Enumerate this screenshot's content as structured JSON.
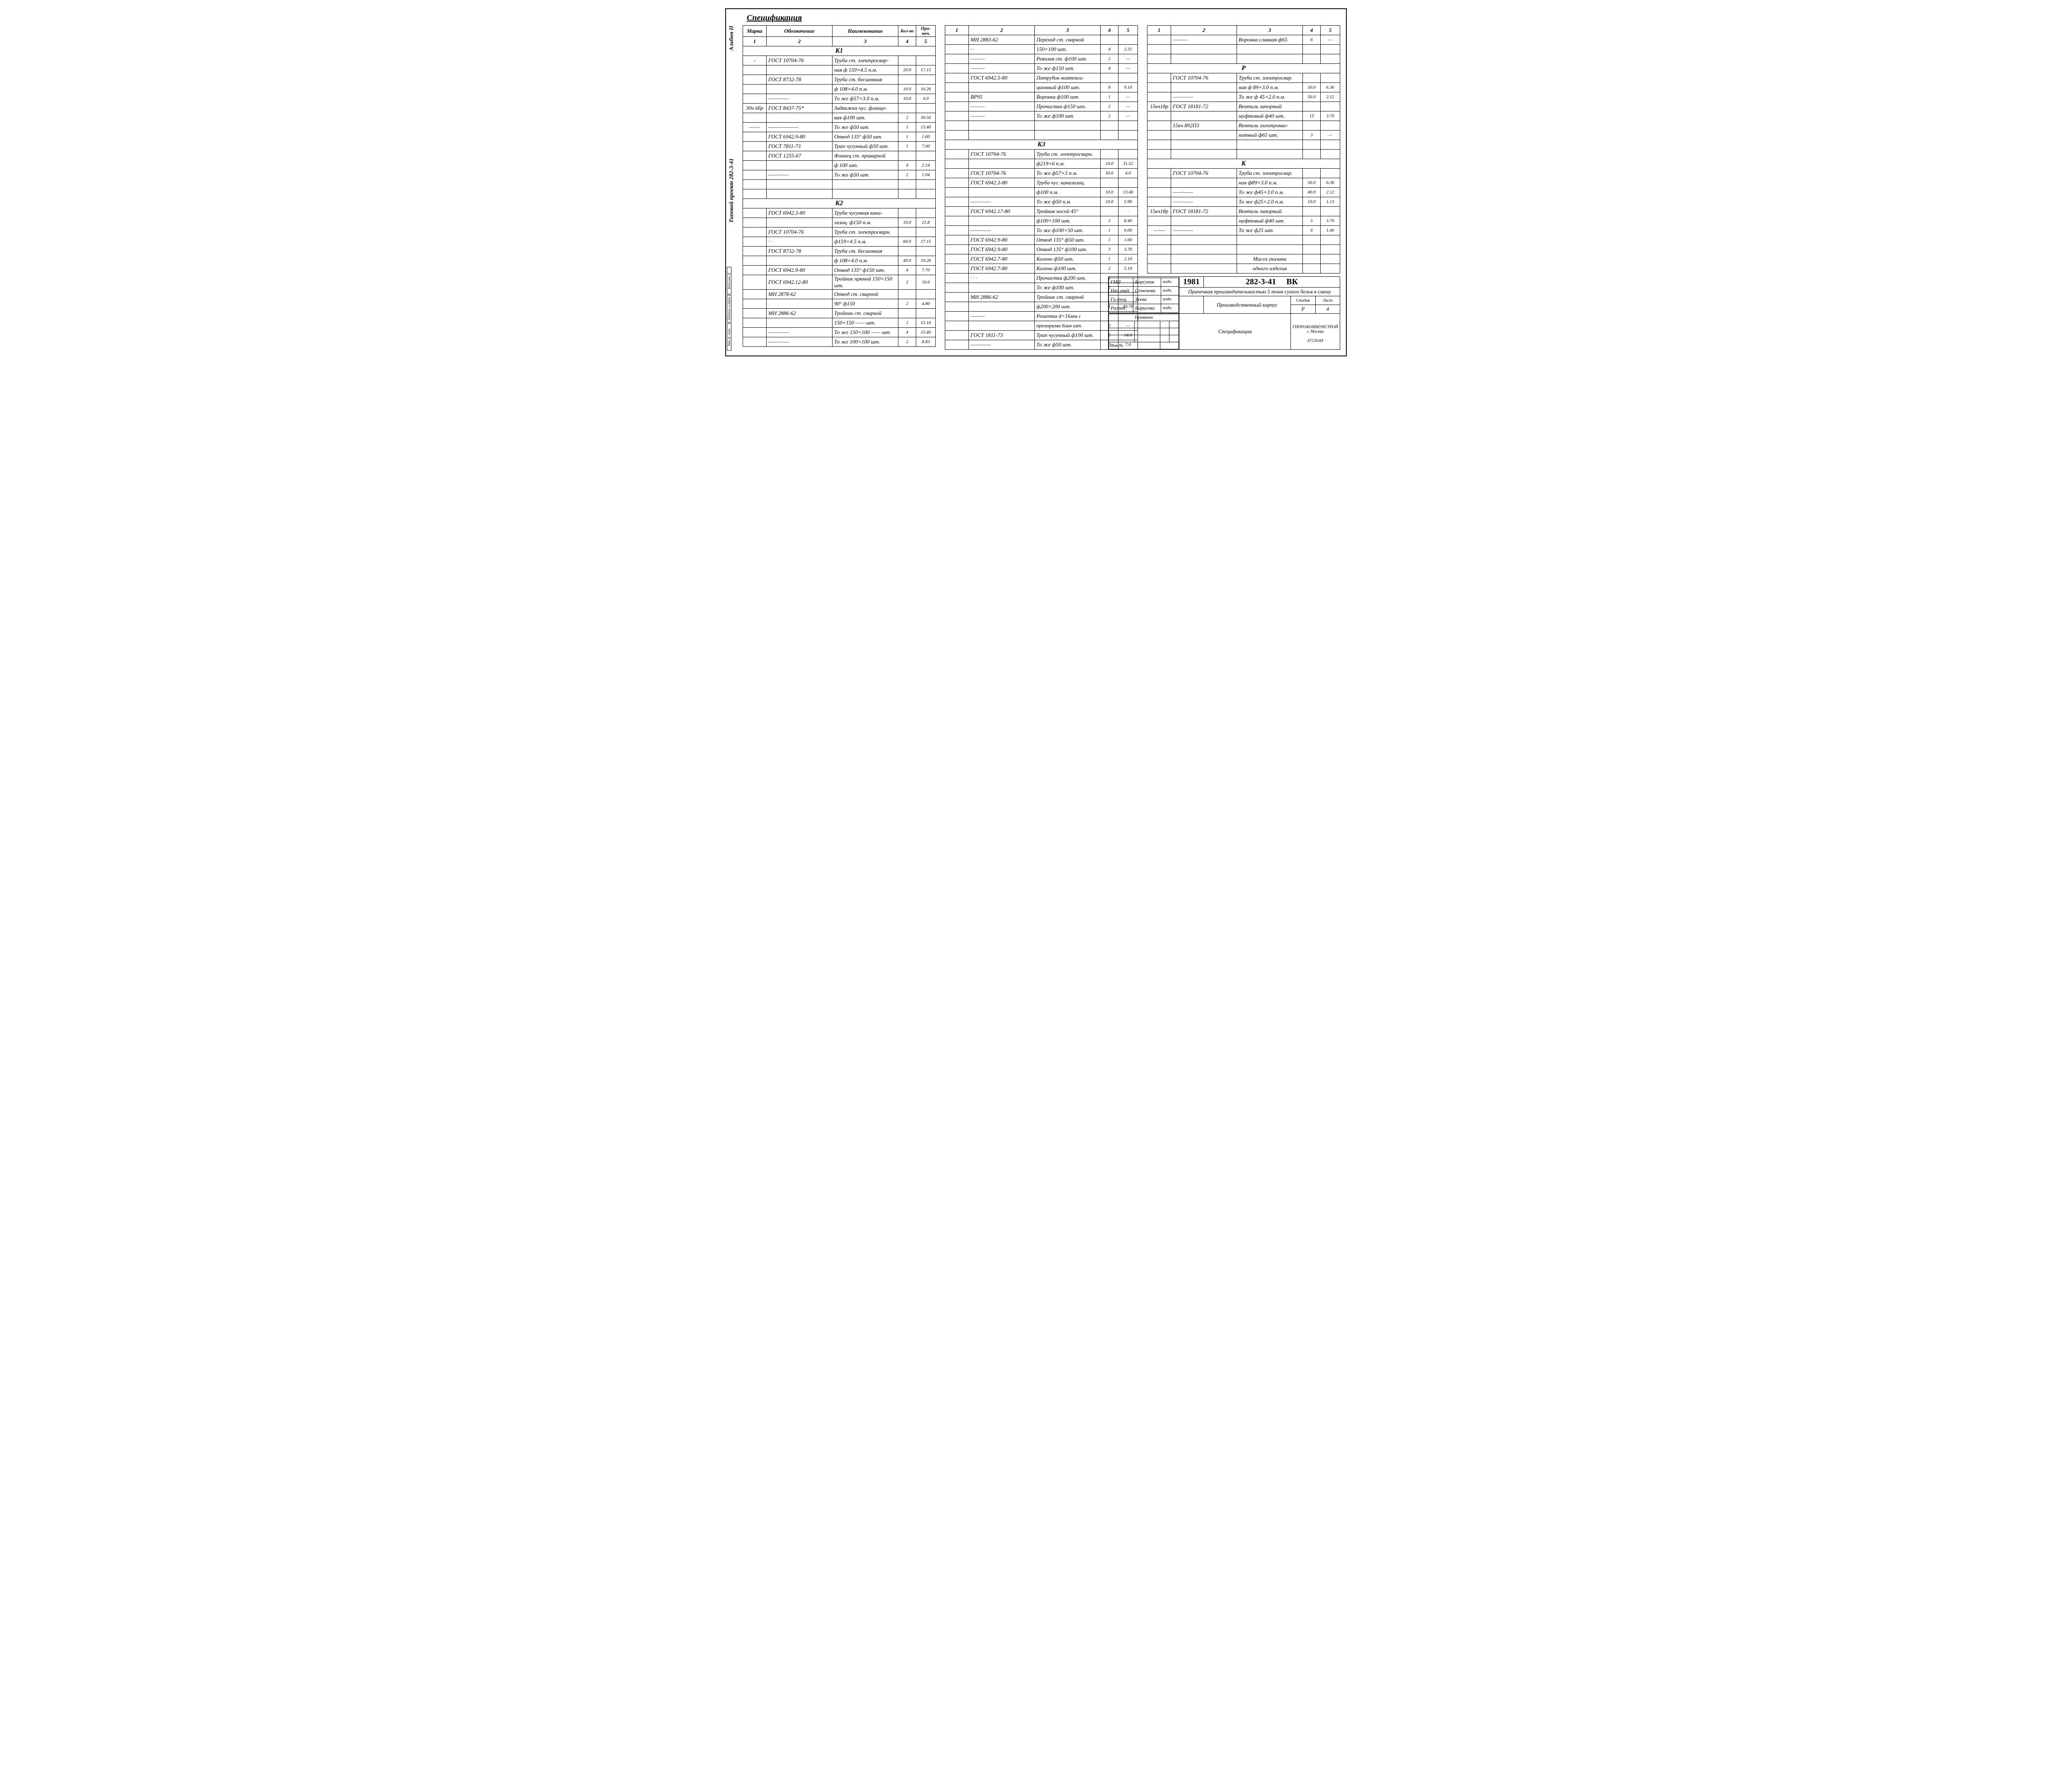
{
  "side_labels": {
    "top": "Альбом II",
    "mid": "Типовой проект 282-3-41"
  },
  "side_boxes": [
    "Взам.инв.№",
    "Подпись и дата",
    "Инв.№ подл."
  ],
  "title": "Спецификация",
  "headers": {
    "marka": "Марка",
    "oboz": "Обозначение",
    "name": "Наименование",
    "kol": "Кол-во",
    "prim": "При-меч."
  },
  "colnums": [
    "1",
    "2",
    "3",
    "4",
    "5"
  ],
  "col1": [
    {
      "type": "section",
      "label": "К1"
    },
    {
      "marka": "-",
      "oboz": "ГОСТ 10704-76",
      "name": "Труба ст. электросвар-",
      "kol": "",
      "prim": ""
    },
    {
      "marka": "",
      "oboz": "",
      "name": "ная ф 159×4.5        п.м.",
      "kol": "20.0",
      "prim": "17.15"
    },
    {
      "marka": "",
      "oboz": "ГОСТ 8732-78",
      "name": "Труба ст. бесшовная",
      "kol": "",
      "prim": ""
    },
    {
      "marka": "",
      "oboz": "",
      "name": "ф 108×4.0            п.м.",
      "kol": "10.0",
      "prim": "10.26"
    },
    {
      "marka": "",
      "oboz": "——·——",
      "name": "То же ф57×3.0        п.м.",
      "kol": "10.0",
      "prim": "4.0"
    },
    {
      "marka": "30ч 6бр",
      "oboz": "ГОСТ 8437-75*",
      "name": "Задвижка чуг. фланце-",
      "kol": "",
      "prim": ""
    },
    {
      "marka": "",
      "oboz": "",
      "name": "вая ф100             шт.",
      "kol": "2",
      "prim": "39.50"
    },
    {
      "marka": "—·—",
      "oboz": "———·———",
      "name": "То же ф50            шт.",
      "kol": "1",
      "prim": "13.40"
    },
    {
      "marka": "",
      "oboz": "ГОСТ 6942.9-80",
      "name": "Отвод 135° ф50       шт.",
      "kol": "1",
      "prim": "1.60"
    },
    {
      "marka": "",
      "oboz": "ГОСТ 7811-73",
      "name": "Трап чугунный ф50    шт.",
      "kol": "1",
      "prim": "7.00"
    },
    {
      "marka": "",
      "oboz": "ГОСТ 1255-67",
      "name": "Фланец ст. приварной",
      "kol": "",
      "prim": ""
    },
    {
      "marka": "",
      "oboz": "",
      "name": "ф 100                шт.",
      "kol": "4",
      "prim": "2.14"
    },
    {
      "marka": "",
      "oboz": "——·——",
      "name": "То же ф50            шт.",
      "kol": "2",
      "prim": "1.04"
    },
    {
      "type": "blank"
    },
    {
      "type": "blank"
    },
    {
      "type": "section",
      "label": "К2"
    },
    {
      "marka": "",
      "oboz": "ГОСТ 6942.3-80",
      "name": "Труба чугунная кана-",
      "kol": "",
      "prim": ""
    },
    {
      "marka": "",
      "oboz": "",
      "name": "лизац. ф150          п.м.",
      "kol": "10.0",
      "prim": "21.8"
    },
    {
      "marka": "",
      "oboz": "ГОСТ 10704-76",
      "name": "Труба ст. электросварн.",
      "kol": "",
      "prim": ""
    },
    {
      "marka": "",
      "oboz": "· ·",
      "name": "ф159×4.5             п.м.",
      "kol": "60.0",
      "prim": "17.15"
    },
    {
      "marka": "",
      "oboz": "ГОСТ 8732-78",
      "name": "Труба ст. бесшовная",
      "kol": "",
      "prim": ""
    },
    {
      "marka": "",
      "oboz": "",
      "name": "ф 108×4.0            п.м.",
      "kol": "40.0",
      "prim": "10.26"
    },
    {
      "marka": "",
      "oboz": "ГОСТ 6942.9-80",
      "name": "Отвод 135° ф150      шт.",
      "kol": "4",
      "prim": "7.70"
    },
    {
      "marka": "",
      "oboz": "ГОСТ 6942.12-80",
      "name": "Тройник прямой 150×150 шт.",
      "kol": "2",
      "prim": "10.6"
    },
    {
      "marka": "",
      "oboz": "МН 2878-62",
      "name": "Отвод ст. сварной",
      "kol": "",
      "prim": ""
    },
    {
      "marka": "",
      "oboz": "",
      "name": "90° ф150",
      "kol": "2",
      "prim": "4.80"
    },
    {
      "marka": "",
      "oboz": "МН 2886-62",
      "name": "Тройник ст. сварной",
      "kol": "",
      "prim": ""
    },
    {
      "marka": "",
      "oboz": "",
      "name": "150×150        —— шт.",
      "kol": "2",
      "prim": "15.10"
    },
    {
      "marka": "",
      "oboz": "——·——",
      "name": "То же 150×100  —— шт.",
      "kol": "4",
      "prim": "15.40"
    },
    {
      "marka": "",
      "oboz": "——·——",
      "name": "То же 100×100      шт.",
      "kol": "2",
      "prim": "8.83"
    }
  ],
  "col2": [
    {
      "marka": "",
      "oboz": "МН 2883-62",
      "name": "Переход ст. сварной",
      "kol": "",
      "prim": ""
    },
    {
      "marka": "",
      "oboz": "· ·",
      "name": "150×100              шт.",
      "kol": "4",
      "prim": "2.31"
    },
    {
      "marka": "",
      "oboz": "———",
      "name": "Ревизия ст. ф100     шт.",
      "kol": "2",
      "prim": "—"
    },
    {
      "marka": "",
      "oboz": "———",
      "name": "То же ф150           шт.",
      "kol": "4",
      "prim": "—"
    },
    {
      "marka": "",
      "oboz": "ГОСТ 6942.5-80",
      "name": "Патрубок компенса-",
      "kol": "",
      "prim": ""
    },
    {
      "marka": "",
      "oboz": "",
      "name": "ционный ф100         шт.",
      "kol": "8",
      "prim": "9.10"
    },
    {
      "marka": "",
      "oboz": "ВР95",
      "name": "Воронка ф100         шт.",
      "kol": "1",
      "prim": "—"
    },
    {
      "marka": "",
      "oboz": "———",
      "name": "Прочистка ф150       шт.",
      "kol": "2",
      "prim": "—"
    },
    {
      "marka": "",
      "oboz": "———",
      "name": "То же   ф100         шт.",
      "kol": "2",
      "prim": "—"
    },
    {
      "type": "blank"
    },
    {
      "type": "blank"
    },
    {
      "type": "section",
      "label": "К3"
    },
    {
      "marka": "",
      "oboz": "ГОСТ 10704-76",
      "name": "Труба ст. электросварн.",
      "kol": "",
      "prim": ""
    },
    {
      "marka": "",
      "oboz": "",
      "name": "ф219×6               п.м.",
      "kol": "10.0",
      "prim": "31.52"
    },
    {
      "marka": "",
      "oboz": "ГОСТ 10704-76",
      "name": "То же ф57×3          п.м.",
      "kol": "30.0",
      "prim": "4.0"
    },
    {
      "marka": "",
      "oboz": "ГОСТ 6942.3-80",
      "name": "Труба чуг. канализац.",
      "kol": "",
      "prim": ""
    },
    {
      "marka": "",
      "oboz": "",
      "name": "ф100                 п.м.",
      "kol": "10.0",
      "prim": "13.40"
    },
    {
      "marka": "",
      "oboz": "——·——",
      "name": "То же ф50            п.м.",
      "kol": "10.0",
      "prim": "5.90"
    },
    {
      "marka": "",
      "oboz": "ГОСТ 6942.17-80",
      "name": "Тройник косой   45°",
      "kol": "",
      "prim": "·"
    },
    {
      "marka": "",
      "oboz": "",
      "name": "ф100×100             шт.",
      "kol": "2",
      "prim": "8.40"
    },
    {
      "marka": "",
      "oboz": "——·——",
      "name": "То же ф100×50        шт.",
      "kol": "1",
      "prim": "6.00"
    },
    {
      "marka": "",
      "oboz": "ГОСТ 6942.9-80",
      "name": "Отвод 135° ф50       шт.",
      "kol": "1",
      "prim": "1.60"
    },
    {
      "marka": "",
      "oboz": "ГОСТ 6942.9-80",
      "name": "Отвод 135° ф100      шт.",
      "kol": "3",
      "prim": "3.70"
    },
    {
      "marka": "",
      "oboz": "ГОСТ 6942.7-80",
      "name": "Колено ф50           шт.",
      "kol": "1",
      "prim": "2.10"
    },
    {
      "marka": "",
      "oboz": "ГОСТ 6942.7-80",
      "name": "Колено ф100          шт.",
      "kol": "2",
      "prim": "5.10"
    },
    {
      "marka": "",
      "oboz": "· · ·",
      "name": "Прочистка ф200       шт.",
      "kol": "1",
      "prim": ""
    },
    {
      "marka": "",
      "oboz": "",
      "name": "То же   ф100         шт.",
      "kol": "2",
      "prim": ""
    },
    {
      "marka": "",
      "oboz": "МН 2886-62",
      "name": "Тройник ст. сварной",
      "kol": "",
      "prim": ""
    },
    {
      "marka": "",
      "oboz": "",
      "name": "ф200×200             шт.",
      "kol": "1",
      "prim": "33.70"
    },
    {
      "marka": "",
      "oboz": "———",
      "name": "Решетка d=16мм с",
      "kol": "",
      "prim": ""
    },
    {
      "marka": "",
      "oboz": "",
      "name": "прозорами 6мм        шт.",
      "kol": "2",
      "prim": "—"
    },
    {
      "marka": "",
      "oboz": "ГОСТ 1811-73",
      "name": "Трап чугунный ф100   шт.",
      "kol": "2",
      "prim": "14.0"
    },
    {
      "marka": "",
      "oboz": "——·——",
      "name": "То же  ф50           шт.",
      "kol": "2",
      "prim": "7.0"
    }
  ],
  "col3": [
    {
      "marka": "",
      "oboz": "———",
      "name": "Воронка сливная ф65",
      "kol": "6",
      "prim": "—"
    },
    {
      "type": "blank"
    },
    {
      "type": "blank"
    },
    {
      "type": "section",
      "label": "Р"
    },
    {
      "marka": "",
      "oboz": "ГОСТ 10704-76",
      "name": "Труба ст. электросвар.",
      "kol": "",
      "prim": ""
    },
    {
      "marka": "",
      "oboz": "",
      "name": "ная ф 89×3.0         п.м.",
      "kol": "50.0",
      "prim": "6.36"
    },
    {
      "marka": "",
      "oboz": "——·——",
      "name": "То же ф 45×2.0       п.м.",
      "kol": "50.0",
      "prim": "2.12"
    },
    {
      "marka": "15кч18р",
      "oboz": "ГОСТ 18181-72",
      "name": "Вентиль запорный",
      "kol": "",
      "prim": ""
    },
    {
      "marka": "",
      "oboz": "",
      "name": "муфтовый ф40         шт.",
      "kol": "13",
      "prim": "3.70"
    },
    {
      "marka": "",
      "oboz": "15кч 892П3",
      "name": "Вентиль электромаг-",
      "kol": "",
      "prim": ""
    },
    {
      "marka": "",
      "oboz": "",
      "name": "нитный ф65           шт.",
      "kol": "3",
      "prim": "—"
    },
    {
      "type": "blank"
    },
    {
      "type": "blank"
    },
    {
      "type": "section",
      "label": "К"
    },
    {
      "marka": "",
      "oboz": "ГОСТ 10704-76",
      "name": "Труба ст. электросвар.",
      "kol": "",
      "prim": ""
    },
    {
      "marka": "",
      "oboz": "",
      "name": "ная ф89×3.0          п.м.",
      "kol": "50.0",
      "prim": "6.36"
    },
    {
      "marka": "",
      "oboz": "——·——",
      "name": "То же ф45×3.0        п.м.",
      "kol": "40.0",
      "prim": "2.12"
    },
    {
      "marka": "",
      "oboz": "——·——",
      "name": "То же ф25×2.0        п.м.",
      "kol": "10.0",
      "prim": "1.13"
    },
    {
      "marka": "15кч18р",
      "oboz": "ГОСТ 18181-72",
      "name": "Вентиль запорный",
      "kol": "",
      "prim": ""
    },
    {
      "marka": "",
      "oboz": "",
      "name": "муфтовый ф40         шт.",
      "kol": "5",
      "prim": "3.70"
    },
    {
      "marka": "—·—",
      "oboz": "——·——",
      "name": "То же ф25            шт.",
      "kol": "6",
      "prim": "1.40"
    },
    {
      "type": "blank"
    },
    {
      "type": "blank"
    },
    {
      "type": "note",
      "label": "Масса указана"
    },
    {
      "type": "note",
      "label": "одного изделия"
    }
  ],
  "titleblock": {
    "year": "1981",
    "code": "282-3-41",
    "series": "ВК",
    "project": "Прачечная производительностью 5 тонн сухого белья в смену",
    "object": "Производственный корпус",
    "sheet_name": "Спецификация",
    "stage": "Стадия",
    "list": "Лист",
    "lists": "Листов",
    "stage_v": "Р",
    "list_v": "4",
    "lists_v": "",
    "org": "ГИПРОКОММУНСТРОЙ\nг. Москва",
    "inv": "47226-84",
    "roles": [
      {
        "r": "ГИП",
        "n": "Барсуков",
        "s": "подп."
      },
      {
        "r": "Нач.отд.",
        "n": "Семенова",
        "s": "подп."
      },
      {
        "r": "Гл.спец.",
        "n": "Зуева",
        "s": "подп."
      },
      {
        "r": "Разраб.",
        "n": "Борисова",
        "s": "подп."
      }
    ],
    "priv": "Привязан",
    "inv_label": "Инв.№"
  }
}
